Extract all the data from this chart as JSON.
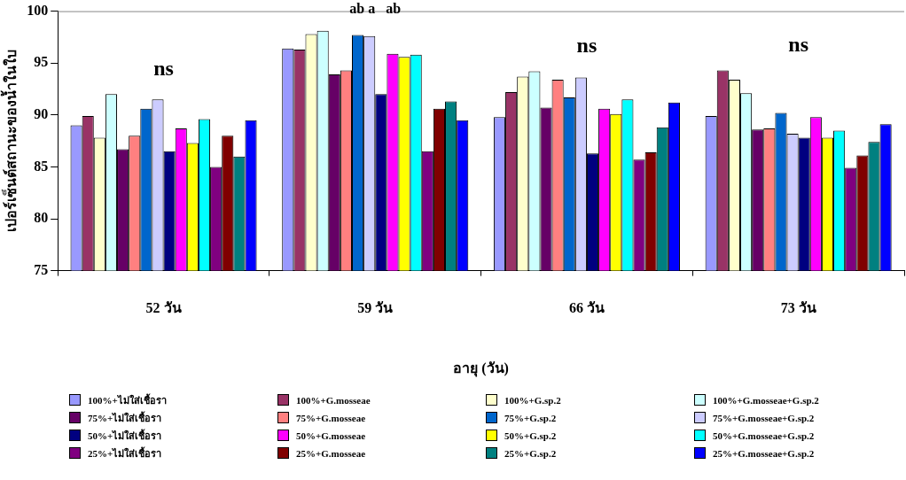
{
  "chart_data": {
    "type": "bar",
    "xlabel": "อายุ (วัน)",
    "ylabel": "เปอร์เซ็นต์สถานะของน้ำในใบ",
    "categories": [
      "52 วัน",
      "59 วัน",
      "66 วัน",
      "73 วัน"
    ],
    "ylim": [
      75,
      100
    ],
    "yticks": [
      75,
      80,
      85,
      90,
      95,
      100
    ],
    "grid": false,
    "legend": "bottom",
    "annotations": [
      "ns",
      "ab a   ab",
      "ns",
      "ns"
    ],
    "series": [
      {
        "name": "100%+ไม่ใส่เชื้อรา",
        "color": "#9999ff",
        "values": [
          89.0,
          96.4,
          89.8,
          89.9
        ]
      },
      {
        "name": "100%+G.mosseae",
        "color": "#993366",
        "values": [
          89.9,
          96.3,
          92.2,
          94.3
        ]
      },
      {
        "name": "100%+G.sp.2",
        "color": "#ffffcc",
        "values": [
          87.8,
          97.8,
          93.7,
          93.4
        ]
      },
      {
        "name": "100%+G.mosseae+G.sp.2",
        "color": "#ccffff",
        "values": [
          92.0,
          98.1,
          94.2,
          92.1
        ]
      },
      {
        "name": "75%+ไม่ใส่เชื้อรา",
        "color": "#660066",
        "values": [
          86.7,
          93.9,
          90.7,
          88.6
        ]
      },
      {
        "name": "75%+G.mosseae",
        "color": "#ff8080",
        "values": [
          88.0,
          94.3,
          93.4,
          88.7
        ]
      },
      {
        "name": "75%+G.sp.2",
        "color": "#0066cc",
        "values": [
          90.6,
          97.7,
          91.7,
          90.2
        ]
      },
      {
        "name": "75%+G.mosseae+G.sp.2",
        "color": "#ccccff",
        "values": [
          91.5,
          97.6,
          93.6,
          88.2
        ]
      },
      {
        "name": "50%+ไม่ใส่เชื้อรา",
        "color": "#000080",
        "values": [
          86.5,
          92.0,
          86.3,
          87.8
        ]
      },
      {
        "name": "50%+G.mosseae",
        "color": "#ff00ff",
        "values": [
          88.7,
          95.9,
          90.6,
          89.8
        ]
      },
      {
        "name": "50%+G.sp.2",
        "color": "#ffff00",
        "values": [
          87.3,
          95.6,
          90.1,
          87.8
        ]
      },
      {
        "name": "50%+G.mosseae+G.sp.2",
        "color": "#00ffff",
        "values": [
          89.6,
          95.8,
          91.5,
          88.5
        ]
      },
      {
        "name": "25%+ไม่ใส่เชื้อรา",
        "color": "#800080",
        "values": [
          85.0,
          86.5,
          85.7,
          84.9
        ]
      },
      {
        "name": "25%+G.mosseae",
        "color": "#800000",
        "values": [
          88.0,
          90.6,
          86.4,
          86.1
        ]
      },
      {
        "name": "25%+G.sp.2",
        "color": "#008080",
        "values": [
          86.0,
          91.3,
          88.8,
          87.4
        ]
      },
      {
        "name": "25%+G.mosseae+G.sp.2",
        "color": "#0000ff",
        "values": [
          89.5,
          89.5,
          91.2,
          89.1
        ]
      }
    ]
  }
}
